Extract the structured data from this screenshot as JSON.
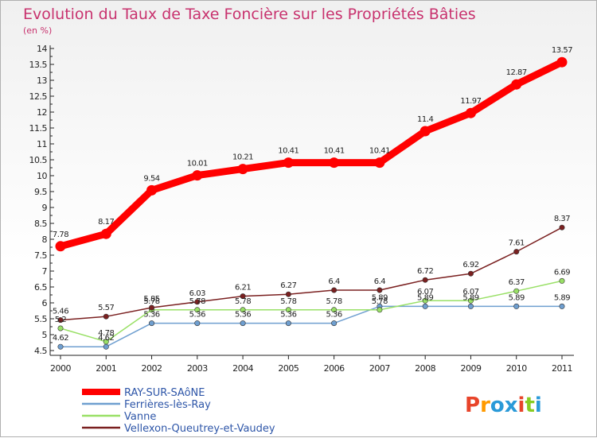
{
  "chart_data": {
    "type": "line",
    "title": "Evolution du Taux de Taxe Foncière sur les Propriétés Bâties",
    "subtitle": "(en %)",
    "xlabel": "",
    "ylabel": "",
    "categories": [
      "2000",
      "2001",
      "2002",
      "2003",
      "2004",
      "2005",
      "2006",
      "2007",
      "2008",
      "2009",
      "2010",
      "2011"
    ],
    "ylim": [
      4.5,
      14
    ],
    "yticks": [
      "4.5",
      "5",
      "5.5",
      "6",
      "6.5",
      "7",
      "7.5",
      "8",
      "8.5",
      "9",
      "9.5",
      "10",
      "10.5",
      "11",
      "11.5",
      "12",
      "12.5",
      "13",
      "13.5",
      "14"
    ],
    "grid": false,
    "legend_position": "bottom-left",
    "series": [
      {
        "name": "RAY-SUR-SAôNE",
        "color": "#ff0000",
        "values": [
          7.78,
          8.17,
          9.54,
          10.01,
          10.21,
          10.41,
          10.41,
          10.41,
          11.4,
          11.97,
          12.87,
          13.57
        ],
        "labels": [
          "7.78",
          "8.17",
          "9.54",
          "10.01",
          "10.21",
          "10.41",
          "10.41",
          "10.41",
          "11.4",
          "11.97",
          "12.87",
          "13.57"
        ]
      },
      {
        "name": "Ferrières-lès-Ray",
        "color": "#6f9fd0",
        "values": [
          4.62,
          4.62,
          5.36,
          5.36,
          5.36,
          5.36,
          5.36,
          5.89,
          5.89,
          5.89,
          5.89,
          5.89
        ],
        "labels": [
          "4.62",
          "4.62",
          "5.36",
          "5.36",
          "5.36",
          "5.36",
          "5.36",
          "5.89",
          "5.89",
          "5.89",
          "5.89",
          "5.89"
        ]
      },
      {
        "name": "Vanne",
        "color": "#99e066",
        "values": [
          5.2,
          4.78,
          5.78,
          5.78,
          5.78,
          5.78,
          5.78,
          5.78,
          6.07,
          6.07,
          6.37,
          6.69
        ],
        "labels": [
          "5.2",
          "4.78",
          "5.78",
          "5.78",
          "5.78",
          "5.78",
          "5.78",
          "5.78",
          "6.07",
          "6.07",
          "6.37",
          "6.69"
        ]
      },
      {
        "name": "Vellexon-Queutrey-et-Vaudey",
        "color": "#7a2020",
        "values": [
          5.46,
          5.57,
          5.85,
          6.03,
          6.21,
          6.27,
          6.4,
          6.4,
          6.72,
          6.92,
          7.61,
          8.37
        ],
        "labels": [
          "5.46",
          "5.57",
          "5.85",
          "6.03",
          "6.21",
          "6.27",
          "6.4",
          "6.4",
          "6.72",
          "6.92",
          "7.61",
          "8.37"
        ]
      }
    ]
  },
  "logo": {
    "letters": [
      "P",
      "r",
      "o",
      "x",
      "i",
      "t",
      "i"
    ],
    "colors": [
      "#e8442a",
      "#ff9a00",
      "#2a9ad8",
      "#2a9ad8",
      "#e8442a",
      "#88cc22",
      "#2a9ad8"
    ]
  }
}
